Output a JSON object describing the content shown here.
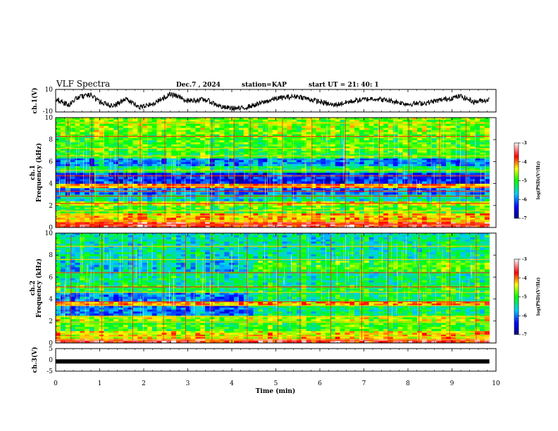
{
  "header": {
    "title": "VLF Spectra",
    "date": "Dec.7 , 2024",
    "station": "station=KAP",
    "start_ut": "start UT = 21: 40: 1"
  },
  "chart_data": [
    {
      "id": "ch1-waveform",
      "type": "line",
      "ylabel": "ch.1(V)",
      "ylim": [
        -10,
        10
      ],
      "yticks": [
        "10",
        "-10"
      ],
      "xlim": [
        0,
        10
      ],
      "trace_x_max": 9.85,
      "profile": [
        [
          0.0,
          2
        ],
        [
          0.3,
          -4
        ],
        [
          0.5,
          3
        ],
        [
          0.8,
          5
        ],
        [
          1.0,
          -1
        ],
        [
          1.3,
          -5
        ],
        [
          1.6,
          2
        ],
        [
          1.9,
          -6
        ],
        [
          2.2,
          -3
        ],
        [
          2.6,
          6
        ],
        [
          3.0,
          0
        ],
        [
          3.4,
          1
        ],
        [
          3.8,
          -6
        ],
        [
          4.2,
          -7
        ],
        [
          4.6,
          -3
        ],
        [
          5.0,
          2
        ],
        [
          5.5,
          4
        ],
        [
          5.9,
          0
        ],
        [
          6.3,
          -4
        ],
        [
          6.8,
          0
        ],
        [
          7.2,
          2
        ],
        [
          7.6,
          0
        ],
        [
          8.0,
          -3
        ],
        [
          8.4,
          -2
        ],
        [
          8.8,
          1
        ],
        [
          9.2,
          4
        ],
        [
          9.5,
          -1
        ],
        [
          9.85,
          1
        ]
      ]
    },
    {
      "id": "ch1-spectrogram",
      "type": "heatmap",
      "ylabel": "Frequency (kHz)",
      "channel_label": "ch.1",
      "xlim": [
        0,
        10
      ],
      "ylim": [
        0,
        10
      ],
      "yticks": [
        "0",
        "2",
        "4",
        "6",
        "8",
        "10"
      ],
      "data_x_max": 9.85,
      "bands": [
        {
          "f": [
            0,
            0.5
          ],
          "v": -3.6
        },
        {
          "f": [
            0.5,
            1.3
          ],
          "v": -4.2
        },
        {
          "f": [
            1.3,
            2.0
          ],
          "v": -4.9
        },
        {
          "f": [
            2.0,
            2.4
          ],
          "v": -4.5
        },
        {
          "f": [
            2.4,
            3.0
          ],
          "v": -5.5
        },
        {
          "f": [
            3.0,
            3.6
          ],
          "v": -6.0
        },
        {
          "f": [
            3.6,
            4.0
          ],
          "v": -4.0
        },
        {
          "f": [
            4.0,
            5.0
          ],
          "v": -6.3
        },
        {
          "f": [
            5.0,
            5.6
          ],
          "v": -5.2
        },
        {
          "f": [
            5.6,
            6.3
          ],
          "v": -5.9
        },
        {
          "f": [
            6.3,
            7.0
          ],
          "v": -5.0
        },
        {
          "f": [
            7.0,
            8.5
          ],
          "v": -4.9
        },
        {
          "f": [
            8.5,
            10
          ],
          "v": -4.7
        }
      ],
      "lines": [
        0.3,
        0.6,
        1.05,
        1.5,
        2.2,
        2.85,
        3.3,
        3.75,
        4.7,
        5.2,
        6.5,
        7.2,
        8.3,
        9.5
      ],
      "spikes": [
        0.28,
        0.82,
        1.42,
        1.92,
        2.48,
        3.55,
        4.05,
        4.42,
        5.15,
        5.82,
        6.58,
        7.35,
        8.02,
        8.72,
        9.32
      ]
    },
    {
      "id": "ch2-spectrogram",
      "type": "heatmap",
      "ylabel": "Frequency (kHz)",
      "channel_label": "ch.2",
      "xlim": [
        0,
        10
      ],
      "ylim": [
        0,
        10
      ],
      "yticks": [
        "0",
        "2",
        "4",
        "6",
        "8",
        "10"
      ],
      "data_x_max": 9.85,
      "bands": [
        {
          "f": [
            0,
            0.4
          ],
          "v": -3.6
        },
        {
          "f": [
            0.4,
            1.1
          ],
          "v": -4.3
        },
        {
          "f": [
            1.1,
            2.0
          ],
          "v": -4.9
        },
        {
          "f": [
            2.0,
            2.5
          ],
          "v": -4.6
        },
        {
          "f": [
            2.5,
            3.4
          ],
          "v": -6.0
        },
        {
          "f": [
            3.4,
            3.8
          ],
          "v": -4.1
        },
        {
          "f": [
            3.8,
            4.6
          ],
          "v": -5.9
        },
        {
          "f": [
            4.6,
            5.3
          ],
          "v": -5.1
        },
        {
          "f": [
            5.3,
            6.5
          ],
          "v": -5.3
        },
        {
          "f": [
            6.5,
            7.5
          ],
          "v": -5.6
        },
        {
          "f": [
            7.5,
            10
          ],
          "v": -5.4
        }
      ],
      "lines": [
        0.3,
        0.6,
        1.9,
        2.4,
        3.4,
        3.75,
        4.6,
        5.1,
        6.4,
        7.6,
        8.8
      ],
      "spikes": [
        0.35,
        1.05,
        1.75,
        2.45,
        2.95,
        3.55,
        4.35,
        5.05,
        5.55,
        6.25,
        6.95,
        7.55,
        8.25,
        8.95,
        9.55
      ]
    },
    {
      "id": "ch3-waveform",
      "type": "line",
      "ylabel": "ch.3(V)",
      "ylim": [
        -5,
        5
      ],
      "yticks": [
        "5",
        "0",
        "-5"
      ],
      "xlim": [
        0,
        10
      ],
      "xticks": [
        "0",
        "1",
        "2",
        "3",
        "4",
        "5",
        "6",
        "7",
        "8",
        "9",
        "10"
      ],
      "xlabel": "Time (min)",
      "trace_x_max": 9.85,
      "level": -0.7
    }
  ],
  "colorbars": [
    {
      "id": "colorbar-1",
      "label": "log(PSD)(V²/Hz)",
      "ticks": [
        "-3",
        "-4",
        "-5",
        "-6",
        "-7"
      ],
      "range": [
        -7,
        -3
      ]
    },
    {
      "id": "colorbar-2",
      "label": "log(PSD)(V²/Hz)",
      "ticks": [
        "-3",
        "-4",
        "-5",
        "-6",
        "-7"
      ],
      "range": [
        -7,
        -3
      ]
    }
  ]
}
